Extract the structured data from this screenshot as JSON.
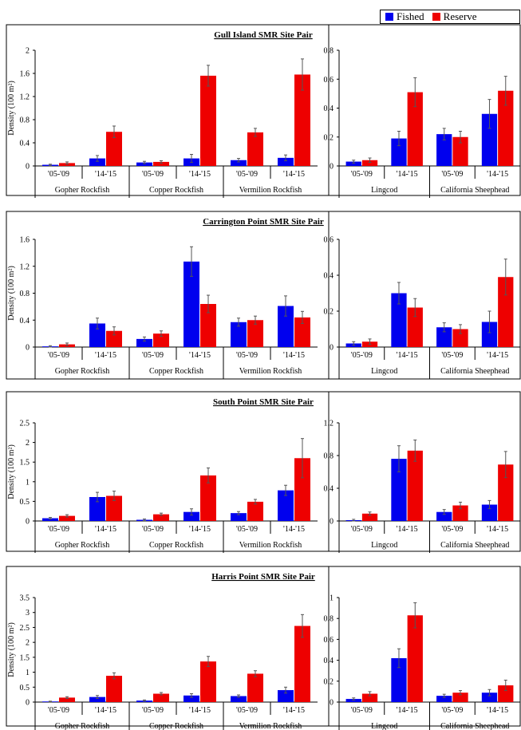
{
  "colors": {
    "fished": "#0000ee",
    "reserve": "#ee0000",
    "axis": "#000000"
  },
  "legend": {
    "fished_label": "Fished",
    "reserve_label": "Reserve",
    "placement": "top-right"
  },
  "chart_data": [
    {
      "type": "bar",
      "title": "Gull Island SMR Site Pair",
      "ylabel": "Density  (100 m²)",
      "series_names": [
        "Fished",
        "Reserve"
      ],
      "left": {
        "ylim": [
          0,
          2
        ],
        "yticks": [
          "0",
          "0.4",
          "0.8",
          "1.2",
          "1.6",
          "2"
        ],
        "groups": [
          {
            "label": "Gopher Rockfish",
            "periods": [
              "'05-'09",
              "'14-'15"
            ],
            "fished": [
              0.02,
              0.13
            ],
            "reserve": [
              0.05,
              0.59
            ],
            "fished_err": [
              0.01,
              0.05
            ],
            "reserve_err": [
              0.02,
              0.1
            ]
          },
          {
            "label": "Copper Rockfish",
            "periods": [
              "'05-'09",
              "'14-'15"
            ],
            "fished": [
              0.06,
              0.13
            ],
            "reserve": [
              0.07,
              1.56
            ],
            "fished_err": [
              0.02,
              0.07
            ],
            "reserve_err": [
              0.02,
              0.18
            ]
          },
          {
            "label": "Vermilion Rockfish",
            "periods": [
              "'05-'09",
              "'14-'15"
            ],
            "fished": [
              0.1,
              0.14
            ],
            "reserve": [
              0.58,
              1.58
            ],
            "fished_err": [
              0.03,
              0.05
            ],
            "reserve_err": [
              0.07,
              0.27
            ]
          }
        ]
      },
      "right": {
        "ylim": [
          0,
          0.8
        ],
        "yticks": [
          "0",
          "0.2",
          "0.4",
          "0.6",
          "0.8"
        ],
        "groups": [
          {
            "label": "Lingcod",
            "periods": [
              "'05-'09",
              "'14-'15"
            ],
            "fished": [
              0.03,
              0.19
            ],
            "reserve": [
              0.04,
              0.51
            ],
            "fished_err": [
              0.01,
              0.05
            ],
            "reserve_err": [
              0.015,
              0.1
            ]
          },
          {
            "label": "California Sheephead",
            "periods": [
              "'05-'09",
              "'14-'15"
            ],
            "fished": [
              0.22,
              0.36
            ],
            "reserve": [
              0.2,
              0.52
            ],
            "fished_err": [
              0.04,
              0.1
            ],
            "reserve_err": [
              0.04,
              0.1
            ]
          }
        ]
      }
    },
    {
      "type": "bar",
      "title": "Carrington Point SMR Site Pair",
      "ylabel": "Density  (100 m²)",
      "series_names": [
        "Fished",
        "Reserve"
      ],
      "left": {
        "ylim": [
          0,
          1.6
        ],
        "yticks": [
          "0",
          "0.4",
          "0.8",
          "1.2",
          "1.6"
        ],
        "groups": [
          {
            "label": "Gopher Rockfish",
            "periods": [
              "'05-'09",
              "'14-'15"
            ],
            "fished": [
              0.01,
              0.35
            ],
            "reserve": [
              0.04,
              0.24
            ],
            "fished_err": [
              0.01,
              0.08
            ],
            "reserve_err": [
              0.02,
              0.06
            ]
          },
          {
            "label": "Copper Rockfish",
            "periods": [
              "'05-'09",
              "'14-'15"
            ],
            "fished": [
              0.12,
              1.27
            ],
            "reserve": [
              0.2,
              0.64
            ],
            "fished_err": [
              0.03,
              0.22
            ],
            "reserve_err": [
              0.04,
              0.13
            ]
          },
          {
            "label": "Vermilion Rockfish",
            "periods": [
              "'05-'09",
              "'14-'15"
            ],
            "fished": [
              0.37,
              0.61
            ],
            "reserve": [
              0.4,
              0.44
            ],
            "fished_err": [
              0.06,
              0.15
            ],
            "reserve_err": [
              0.06,
              0.09
            ]
          }
        ]
      },
      "right": {
        "ylim": [
          0,
          0.6
        ],
        "yticks": [
          "0",
          "0.2",
          "0.4",
          "0.6"
        ],
        "groups": [
          {
            "label": "Lingcod",
            "periods": [
              "'05-'09",
              "'14-'15"
            ],
            "fished": [
              0.02,
              0.3
            ],
            "reserve": [
              0.03,
              0.22
            ],
            "fished_err": [
              0.01,
              0.06
            ],
            "reserve_err": [
              0.015,
              0.05
            ]
          },
          {
            "label": "California Sheephead",
            "periods": [
              "'05-'09",
              "'14-'15"
            ],
            "fished": [
              0.11,
              0.14
            ],
            "reserve": [
              0.1,
              0.39
            ],
            "fished_err": [
              0.025,
              0.06
            ],
            "reserve_err": [
              0.025,
              0.1
            ]
          }
        ]
      }
    },
    {
      "type": "bar",
      "title": "South Point SMR Site Pair",
      "ylabel": "Density  (100 m²)",
      "series_names": [
        "Fished",
        "Reserve"
      ],
      "left": {
        "ylim": [
          0,
          2.5
        ],
        "yticks": [
          "0",
          "0.5",
          "1",
          "1.5",
          "2",
          "2.5"
        ],
        "groups": [
          {
            "label": "Gopher Rockfish",
            "periods": [
              "'05-'09",
              "'14-'15"
            ],
            "fished": [
              0.07,
              0.61
            ],
            "reserve": [
              0.13,
              0.64
            ],
            "fished_err": [
              0.02,
              0.12
            ],
            "reserve_err": [
              0.03,
              0.12
            ]
          },
          {
            "label": "Copper Rockfish",
            "periods": [
              "'05-'09",
              "'14-'15"
            ],
            "fished": [
              0.03,
              0.23
            ],
            "reserve": [
              0.17,
              1.16
            ],
            "fished_err": [
              0.02,
              0.08
            ],
            "reserve_err": [
              0.03,
              0.19
            ]
          },
          {
            "label": "Vermilion Rockfish",
            "periods": [
              "'05-'09",
              "'14-'15"
            ],
            "fished": [
              0.2,
              0.78
            ],
            "reserve": [
              0.49,
              1.6
            ],
            "fished_err": [
              0.04,
              0.13
            ],
            "reserve_err": [
              0.06,
              0.5
            ]
          }
        ]
      },
      "right": {
        "ylim": [
          0,
          1.2
        ],
        "yticks": [
          "0",
          "0.4",
          "0.8",
          "1.2"
        ],
        "groups": [
          {
            "label": "Lingcod",
            "periods": [
              "'05-'09",
              "'14-'15"
            ],
            "fished": [
              0.01,
              0.76
            ],
            "reserve": [
              0.09,
              0.86
            ],
            "fished_err": [
              0.01,
              0.16
            ],
            "reserve_err": [
              0.02,
              0.13
            ]
          },
          {
            "label": "California Sheephead",
            "periods": [
              "'05-'09",
              "'14-'15"
            ],
            "fished": [
              0.11,
              0.2
            ],
            "reserve": [
              0.19,
              0.69
            ],
            "fished_err": [
              0.03,
              0.05
            ],
            "reserve_err": [
              0.04,
              0.16
            ]
          }
        ]
      }
    },
    {
      "type": "bar",
      "title": "Harris Point SMR Site Pair",
      "ylabel": "Density  (100 m²)",
      "series_names": [
        "Fished",
        "Reserve"
      ],
      "left": {
        "ylim": [
          0,
          3.5
        ],
        "yticks": [
          "0",
          "0.5",
          "1",
          "1.5",
          "2",
          "2.5",
          "3",
          "3.5"
        ],
        "groups": [
          {
            "label": "Gopher Rockfish",
            "periods": [
              "'05-'09",
              "'14-'15"
            ],
            "fished": [
              0.02,
              0.17
            ],
            "reserve": [
              0.15,
              0.88
            ],
            "fished_err": [
              0.01,
              0.05
            ],
            "reserve_err": [
              0.03,
              0.1
            ]
          },
          {
            "label": "Copper Rockfish",
            "periods": [
              "'05-'09",
              "'14-'15"
            ],
            "fished": [
              0.05,
              0.22
            ],
            "reserve": [
              0.28,
              1.36
            ],
            "fished_err": [
              0.02,
              0.06
            ],
            "reserve_err": [
              0.04,
              0.17
            ]
          },
          {
            "label": "Vermilion Rockfish",
            "periods": [
              "'05-'09",
              "'14-'15"
            ],
            "fished": [
              0.2,
              0.4
            ],
            "reserve": [
              0.95,
              2.55
            ],
            "fished_err": [
              0.04,
              0.1
            ],
            "reserve_err": [
              0.1,
              0.38
            ]
          }
        ]
      },
      "right": {
        "ylim": [
          0,
          1
        ],
        "yticks": [
          "0",
          "0.2",
          "0.4",
          "0.6",
          "0.8",
          "1"
        ],
        "groups": [
          {
            "label": "Lingcod",
            "periods": [
              "'05-'09",
              "'14-'15"
            ],
            "fished": [
              0.03,
              0.42
            ],
            "reserve": [
              0.08,
              0.83
            ],
            "fished_err": [
              0.01,
              0.09
            ],
            "reserve_err": [
              0.02,
              0.12
            ]
          },
          {
            "label": "California Sheephead",
            "periods": [
              "'05-'09",
              "'14-'15"
            ],
            "fished": [
              0.06,
              0.09
            ],
            "reserve": [
              0.09,
              0.16
            ],
            "fished_err": [
              0.015,
              0.03
            ],
            "reserve_err": [
              0.02,
              0.05
            ]
          }
        ]
      }
    }
  ]
}
